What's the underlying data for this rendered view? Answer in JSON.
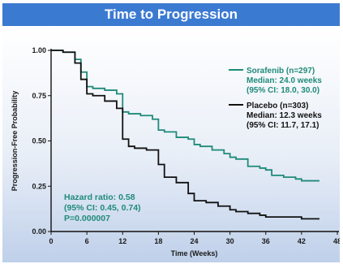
{
  "header": {
    "title": "Time to Progression"
  },
  "chart_data": {
    "type": "line",
    "xlabel": "Time (Weeks)",
    "ylabel": "Progression-Free Probability",
    "xlim": [
      0,
      48
    ],
    "ylim": [
      0,
      1
    ],
    "x_ticks": [
      "0",
      "6",
      "12",
      "18",
      "24",
      "30",
      "36",
      "42",
      "48"
    ],
    "y_ticks": [
      "0.00",
      "0.25",
      "0.50",
      "0.75",
      "1.00"
    ],
    "series": [
      {
        "name": "Sorafenib (n=297)",
        "color": "#1f8a7a",
        "median_text": "Median: 24.0 weeks",
        "ci_text": "(95% CI: 18.0, 30.0)",
        "x": [
          0,
          2,
          4,
          5,
          6,
          7,
          9,
          11,
          12,
          13,
          15,
          17,
          18,
          19,
          21,
          23,
          24,
          25,
          27,
          29,
          30,
          31,
          33,
          35,
          36,
          37,
          39,
          41,
          42,
          45
        ],
        "y": [
          1.0,
          0.99,
          0.95,
          0.88,
          0.8,
          0.79,
          0.78,
          0.76,
          0.66,
          0.65,
          0.64,
          0.62,
          0.56,
          0.55,
          0.52,
          0.51,
          0.48,
          0.47,
          0.45,
          0.43,
          0.41,
          0.4,
          0.36,
          0.35,
          0.34,
          0.31,
          0.3,
          0.29,
          0.28,
          0.28
        ]
      },
      {
        "name": "Placebo (n=303)",
        "color": "#111111",
        "median_text": "Median: 12.3 weeks",
        "ci_text": "(95% CI: 11.7, 17.1)",
        "x": [
          0,
          2,
          4,
          5,
          6,
          7,
          9,
          11,
          12,
          13,
          14,
          16,
          18,
          19,
          21,
          23,
          24,
          26,
          28,
          30,
          31,
          33,
          35,
          36,
          38,
          40,
          42,
          45
        ],
        "y": [
          1.0,
          0.99,
          0.93,
          0.84,
          0.76,
          0.75,
          0.72,
          0.68,
          0.51,
          0.47,
          0.46,
          0.45,
          0.37,
          0.3,
          0.27,
          0.21,
          0.17,
          0.16,
          0.14,
          0.12,
          0.11,
          0.1,
          0.09,
          0.08,
          0.08,
          0.08,
          0.07,
          0.07
        ]
      }
    ],
    "annotation": {
      "line1": "Hazard ratio: 0.58",
      "line2": "(95% CI: 0.45, 0.74)",
      "line3": "P=0.000007"
    },
    "legend_position": "right",
    "grid": false
  }
}
